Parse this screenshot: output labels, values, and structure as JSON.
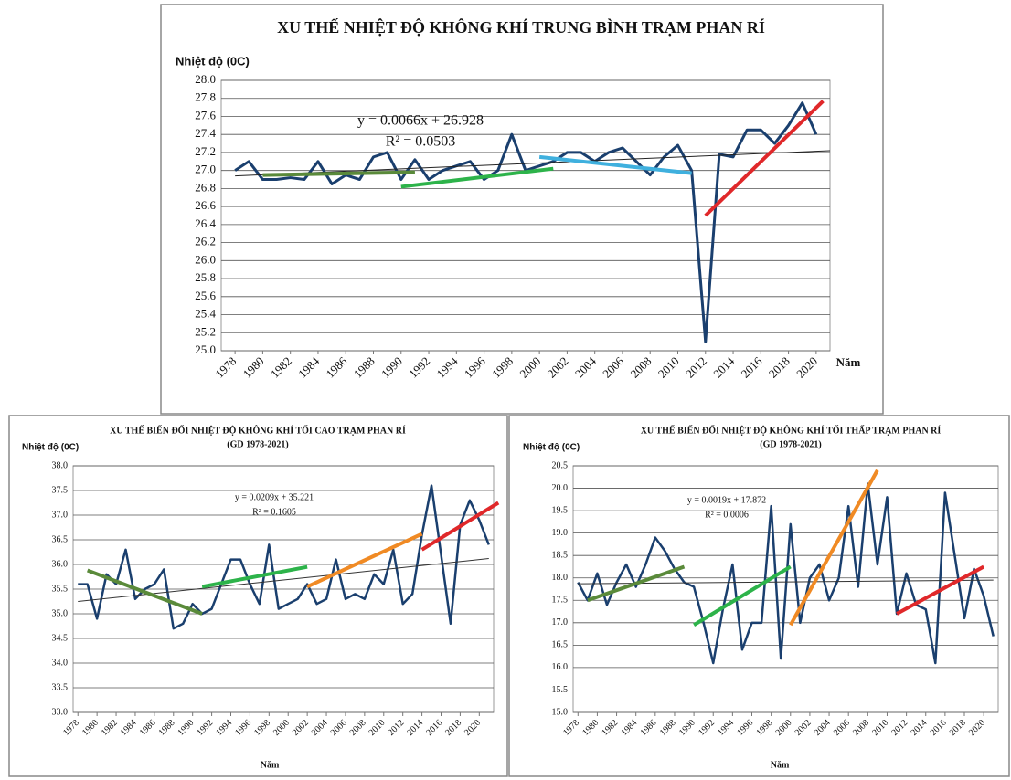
{
  "chart_data": [
    {
      "type": "line",
      "title": "XU THẾ NHIỆT ĐỘ KHÔNG KHÍ TRUNG BÌNH TRẠM PHAN RÍ",
      "y_label": "Nhiệt độ (0C)",
      "x_label": "Năm",
      "annotations": [
        "y = 0.0066x + 26.928",
        "R² = 0.0503"
      ],
      "x": [
        1978,
        1979,
        1980,
        1981,
        1982,
        1983,
        1984,
        1985,
        1986,
        1987,
        1988,
        1989,
        1990,
        1991,
        1992,
        1993,
        1994,
        1995,
        1996,
        1997,
        1998,
        1999,
        2000,
        2001,
        2002,
        2003,
        2004,
        2005,
        2006,
        2007,
        2008,
        2009,
        2010,
        2011,
        2012,
        2013,
        2014,
        2015,
        2016,
        2017,
        2018,
        2019,
        2020
      ],
      "values": [
        27.0,
        27.1,
        26.9,
        26.9,
        26.92,
        26.9,
        27.1,
        26.85,
        26.95,
        26.9,
        27.15,
        27.2,
        26.9,
        27.12,
        26.9,
        27.0,
        27.05,
        27.1,
        26.9,
        27.0,
        27.4,
        27.0,
        27.05,
        27.1,
        27.2,
        27.2,
        27.1,
        27.2,
        27.25,
        27.1,
        26.95,
        27.15,
        27.28,
        27.0,
        25.1,
        27.18,
        27.15,
        27.45,
        27.45,
        27.3,
        27.5,
        27.75,
        27.4
      ],
      "color": "#1a3f6e",
      "trendlines": [
        {
          "color": "#222222",
          "x": [
            1978,
            2021
          ],
          "values": [
            26.94,
            27.22
          ]
        },
        {
          "color": "#5a8a3a",
          "x": [
            1980,
            1991
          ],
          "values": [
            26.95,
            26.98
          ]
        },
        {
          "color": "#2db34a",
          "x": [
            1990,
            2001
          ],
          "values": [
            26.82,
            27.02
          ]
        },
        {
          "color": "#3fb0de",
          "x": [
            2000,
            2011
          ],
          "values": [
            27.15,
            26.97
          ]
        },
        {
          "color": "#e0282a",
          "x": [
            2012,
            2020.5
          ],
          "values": [
            26.5,
            27.77
          ]
        }
      ],
      "xlim": [
        1977,
        2021
      ],
      "xticks": [
        1978,
        1980,
        1982,
        1984,
        1986,
        1988,
        1990,
        1992,
        1994,
        1996,
        1998,
        2000,
        2002,
        2004,
        2006,
        2008,
        2010,
        2012,
        2014,
        2016,
        2018,
        2020
      ],
      "ylim": [
        25,
        28
      ],
      "yticks": [
        {
          "value": 25,
          "label": "25.0"
        },
        25.2,
        25.4,
        25.6,
        25.8,
        {
          "value": 26,
          "label": "26.0"
        },
        26.2,
        26.4,
        26.6,
        26.8,
        {
          "value": 27,
          "label": "27.0"
        },
        27.2,
        27.4,
        27.6,
        27.8,
        {
          "value": 28,
          "label": "28.0"
        }
      ],
      "grid": true
    },
    {
      "type": "line",
      "title": "XU THẾ BIẾN ĐỔI NHIỆT ĐỘ KHÔNG KHÍ  TỐI CAO TRẠM PHAN RÍ",
      "subtitle": "(GD 1978-2021)",
      "y_label": "Nhiệt độ (0C)",
      "x_label": "Năm",
      "annotations": [
        "y = 0.0209x + 35.221",
        "R² = 0.1605"
      ],
      "x": [
        1978,
        1979,
        1980,
        1981,
        1982,
        1983,
        1984,
        1985,
        1986,
        1987,
        1988,
        1989,
        1990,
        1991,
        1992,
        1993,
        1994,
        1995,
        1996,
        1997,
        1998,
        1999,
        2000,
        2001,
        2002,
        2003,
        2004,
        2005,
        2006,
        2007,
        2008,
        2009,
        2010,
        2011,
        2012,
        2013,
        2014,
        2015,
        2016,
        2017,
        2018,
        2019,
        2020,
        2021
      ],
      "values": [
        35.6,
        35.6,
        34.9,
        35.8,
        35.6,
        36.3,
        35.3,
        35.5,
        35.6,
        35.9,
        34.7,
        34.8,
        35.2,
        35.0,
        35.1,
        35.6,
        36.1,
        36.1,
        35.6,
        35.2,
        36.4,
        35.1,
        35.2,
        35.3,
        35.6,
        35.2,
        35.3,
        36.1,
        35.3,
        35.4,
        35.3,
        35.8,
        35.6,
        36.3,
        35.2,
        35.4,
        36.6,
        37.6,
        36.2,
        34.8,
        36.8,
        37.3,
        36.9,
        36.4
      ],
      "color": "#1a3f6e",
      "trendlines": [
        {
          "color": "#333333",
          "x": [
            1978,
            2021
          ],
          "values": [
            35.25,
            36.12
          ]
        },
        {
          "color": "#5a8a3a",
          "x": [
            1979,
            1991
          ],
          "values": [
            35.88,
            35.0
          ]
        },
        {
          "color": "#2db34a",
          "x": [
            1991,
            2002
          ],
          "values": [
            35.55,
            35.95
          ]
        },
        {
          "color": "#f08a24",
          "x": [
            2002,
            2014
          ],
          "values": [
            35.55,
            36.62
          ]
        },
        {
          "color": "#e0282a",
          "x": [
            2014,
            2022
          ],
          "values": [
            36.3,
            37.25
          ]
        }
      ],
      "xlim": [
        1977.5,
        2021.5
      ],
      "xticks": [
        1978,
        1980,
        1982,
        1984,
        1986,
        1988,
        1990,
        1992,
        1994,
        1996,
        1998,
        2000,
        2002,
        2004,
        2006,
        2008,
        2010,
        2012,
        2014,
        2016,
        2018,
        2020
      ],
      "ylim": [
        33,
        38
      ],
      "yticks": [
        {
          "value": 33,
          "label": "33.0"
        },
        33.5,
        {
          "value": 34,
          "label": "34.0"
        },
        34.5,
        {
          "value": 35,
          "label": "35.0"
        },
        35.5,
        {
          "value": 36,
          "label": "36.0"
        },
        36.5,
        {
          "value": 37,
          "label": "37.0"
        },
        37.5,
        {
          "value": 38,
          "label": "38.0"
        }
      ],
      "grid": true
    },
    {
      "type": "line",
      "title": "XU THẾ BIẾN ĐỔI NHIỆT ĐỘ KHÔNG KHÍ  TỐI THẤP TRẠM PHAN RÍ",
      "subtitle": "(GD 1978-2021)",
      "y_label": "Nhiệt độ (0C)",
      "x_label": "Năm",
      "annotations": [
        "y = 0.0019x + 17.872",
        "R² = 0.0006"
      ],
      "x": [
        1978,
        1979,
        1980,
        1981,
        1982,
        1983,
        1984,
        1985,
        1986,
        1987,
        1988,
        1989,
        1990,
        1991,
        1992,
        1993,
        1994,
        1995,
        1996,
        1997,
        1998,
        1999,
        2000,
        2001,
        2002,
        2003,
        2004,
        2005,
        2006,
        2007,
        2008,
        2009,
        2010,
        2011,
        2012,
        2013,
        2014,
        2015,
        2016,
        2017,
        2018,
        2019,
        2020,
        2021
      ],
      "values": [
        17.9,
        17.5,
        18.1,
        17.4,
        17.9,
        18.3,
        17.8,
        18.3,
        18.9,
        18.6,
        18.2,
        17.9,
        17.8,
        17.0,
        16.1,
        17.3,
        18.3,
        16.4,
        17.0,
        17.0,
        19.6,
        16.2,
        19.2,
        17.0,
        18.0,
        18.3,
        17.5,
        18.0,
        19.6,
        17.8,
        20.1,
        18.3,
        19.8,
        17.2,
        18.1,
        17.4,
        17.3,
        16.1,
        19.9,
        18.5,
        17.1,
        18.2,
        17.6,
        16.7
      ],
      "color": "#1a3f6e",
      "trendlines": [
        {
          "color": "#333333",
          "x": [
            1978,
            2021
          ],
          "values": [
            17.87,
            17.95
          ]
        },
        {
          "color": "#5a8a3a",
          "x": [
            1979,
            1989
          ],
          "values": [
            17.5,
            18.25
          ]
        },
        {
          "color": "#2db34a",
          "x": [
            1990,
            2000
          ],
          "values": [
            16.95,
            18.25
          ]
        },
        {
          "color": "#f08a24",
          "x": [
            2000,
            2009
          ],
          "values": [
            16.95,
            20.4
          ]
        },
        {
          "color": "#e0282a",
          "x": [
            2011,
            2020
          ],
          "values": [
            17.2,
            18.25
          ]
        }
      ],
      "xlim": [
        1977.5,
        2021.5
      ],
      "xticks": [
        1978,
        1980,
        1982,
        1984,
        1986,
        1988,
        1990,
        1992,
        1994,
        1996,
        1998,
        2000,
        2002,
        2004,
        2006,
        2008,
        2010,
        2012,
        2014,
        2016,
        2018,
        2020
      ],
      "ylim": [
        15,
        20.5
      ],
      "yticks": [
        {
          "value": 15,
          "label": "15.0"
        },
        15.5,
        {
          "value": 16,
          "label": "16.0"
        },
        16.5,
        {
          "value": 17,
          "label": "17.0"
        },
        17.5,
        {
          "value": 18,
          "label": "18.0"
        },
        18.5,
        {
          "value": 19,
          "label": "19.0"
        },
        19.5,
        {
          "value": 20,
          "label": "20.0"
        },
        20.5
      ],
      "grid": true
    }
  ]
}
